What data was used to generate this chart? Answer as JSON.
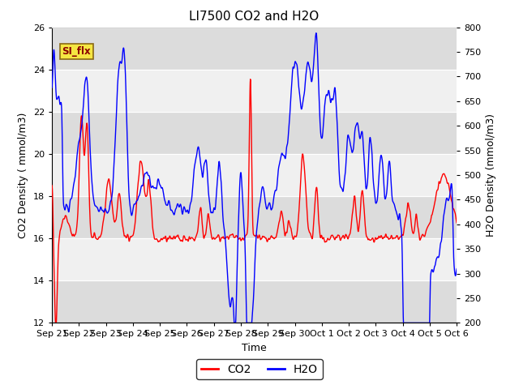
{
  "title": "LI7500 CO2 and H2O",
  "xlabel": "Time",
  "ylabel_left": "CO2 Density ( mmol/m3)",
  "ylabel_right": "H2O Density (mmol/m3)",
  "ylim_left": [
    12,
    26
  ],
  "ylim_right": [
    200,
    800
  ],
  "legend_labels": [
    "CO2",
    "H2O"
  ],
  "legend_colors": [
    "red",
    "blue"
  ],
  "si_flx_label": "SI_flx",
  "background_color": "#ffffff",
  "plot_bg_light": "#f0f0f0",
  "plot_bg_dark": "#dcdcdc",
  "xtick_labels": [
    "Sep 21",
    "Sep 22",
    "Sep 23",
    "Sep 24",
    "Sep 25",
    "Sep 26",
    "Sep 27",
    "Sep 28",
    "Sep 29",
    "Sep 30",
    "Oct 1",
    "Oct 2",
    "Oct 3",
    "Oct 4",
    "Oct 5",
    "Oct 6"
  ],
  "yticks_left": [
    12,
    14,
    16,
    18,
    20,
    22,
    24,
    26
  ],
  "yticks_right": [
    200,
    250,
    300,
    350,
    400,
    450,
    500,
    550,
    600,
    650,
    700,
    750,
    800
  ],
  "title_fontsize": 11,
  "axis_label_fontsize": 9,
  "tick_fontsize": 8,
  "line_width": 1.0
}
